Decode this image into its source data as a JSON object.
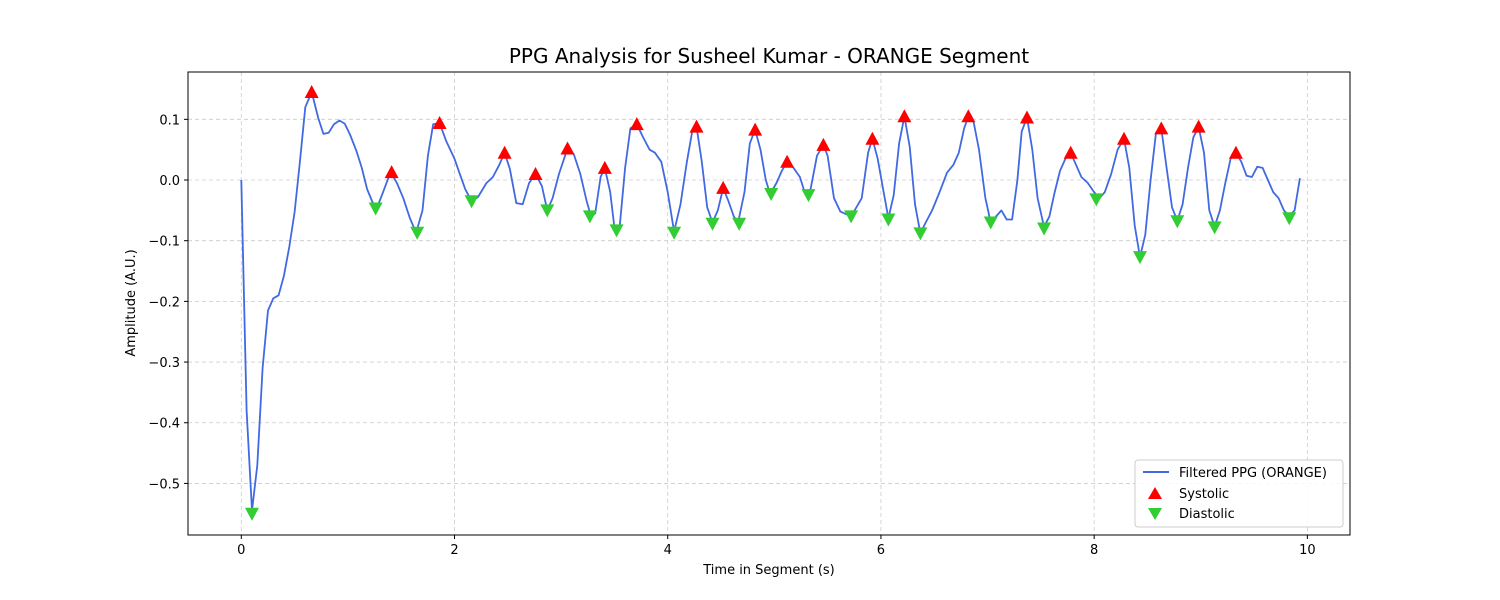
{
  "chart_data": {
    "type": "line",
    "title": "PPG Analysis for Susheel Kumar - ORANGE Segment",
    "xlabel": "Time in Segment (s)",
    "ylabel": "Amplitude (A.U.)",
    "xlim": [
      -0.5,
      10.4
    ],
    "ylim": [
      -0.585,
      0.178
    ],
    "xticks": [
      0,
      2,
      4,
      6,
      8,
      10
    ],
    "yticks": [
      0.1,
      0.0,
      -0.1,
      -0.2,
      -0.3,
      -0.4,
      -0.5
    ],
    "ytick_labels": [
      "0.1",
      "0.0",
      "−0.1",
      "−0.2",
      "−0.3",
      "−0.4",
      "−0.5"
    ],
    "grid": true,
    "legend_position": "lower-right",
    "colors": {
      "line": "#4169e1",
      "systolic": "#ff0000",
      "diastolic": "#32cd32"
    },
    "series": [
      {
        "name": "Filtered PPG (ORANGE)",
        "kind": "line",
        "points": [
          [
            0.0,
            0.0
          ],
          [
            0.05,
            -0.38
          ],
          [
            0.1,
            -0.545
          ],
          [
            0.15,
            -0.47
          ],
          [
            0.2,
            -0.31
          ],
          [
            0.25,
            -0.215
          ],
          [
            0.3,
            -0.195
          ],
          [
            0.35,
            -0.19
          ],
          [
            0.4,
            -0.158
          ],
          [
            0.45,
            -0.11
          ],
          [
            0.5,
            -0.053
          ],
          [
            0.55,
            0.03
          ],
          [
            0.6,
            0.12
          ],
          [
            0.66,
            0.145
          ],
          [
            0.72,
            0.103
          ],
          [
            0.77,
            0.076
          ],
          [
            0.82,
            0.078
          ],
          [
            0.87,
            0.092
          ],
          [
            0.92,
            0.098
          ],
          [
            0.97,
            0.093
          ],
          [
            1.02,
            0.075
          ],
          [
            1.08,
            0.048
          ],
          [
            1.13,
            0.02
          ],
          [
            1.18,
            -0.015
          ],
          [
            1.23,
            -0.036
          ],
          [
            1.27,
            -0.047
          ],
          [
            1.33,
            -0.02
          ],
          [
            1.4,
            0.013
          ],
          [
            1.46,
            -0.005
          ],
          [
            1.52,
            -0.03
          ],
          [
            1.58,
            -0.062
          ],
          [
            1.64,
            -0.087
          ],
          [
            1.7,
            -0.05
          ],
          [
            1.75,
            0.04
          ],
          [
            1.8,
            0.092
          ],
          [
            1.86,
            0.094
          ],
          [
            1.92,
            0.065
          ],
          [
            2.0,
            0.035
          ],
          [
            2.05,
            0.01
          ],
          [
            2.1,
            -0.015
          ],
          [
            2.16,
            -0.035
          ],
          [
            2.22,
            -0.028
          ],
          [
            2.3,
            -0.005
          ],
          [
            2.36,
            0.005
          ],
          [
            2.42,
            0.025
          ],
          [
            2.47,
            0.045
          ],
          [
            2.52,
            0.018
          ],
          [
            2.58,
            -0.038
          ],
          [
            2.64,
            -0.04
          ],
          [
            2.7,
            -0.005
          ],
          [
            2.76,
            0.01
          ],
          [
            2.82,
            -0.01
          ],
          [
            2.87,
            -0.05
          ],
          [
            2.92,
            -0.03
          ],
          [
            2.98,
            0.01
          ],
          [
            3.06,
            0.052
          ],
          [
            3.12,
            0.042
          ],
          [
            3.18,
            0.01
          ],
          [
            3.24,
            -0.035
          ],
          [
            3.28,
            -0.06
          ],
          [
            3.32,
            -0.055
          ],
          [
            3.37,
            0.005
          ],
          [
            3.41,
            0.02
          ],
          [
            3.46,
            -0.02
          ],
          [
            3.5,
            -0.078
          ],
          [
            3.55,
            -0.075
          ],
          [
            3.6,
            0.02
          ],
          [
            3.65,
            0.085
          ],
          [
            3.71,
            0.092
          ],
          [
            3.77,
            0.07
          ],
          [
            3.83,
            0.05
          ],
          [
            3.88,
            0.045
          ],
          [
            3.94,
            0.03
          ],
          [
            4.0,
            -0.02
          ],
          [
            4.06,
            -0.085
          ],
          [
            4.12,
            -0.04
          ],
          [
            4.18,
            0.03
          ],
          [
            4.23,
            0.08
          ],
          [
            4.27,
            0.088
          ],
          [
            4.32,
            0.03
          ],
          [
            4.37,
            -0.045
          ],
          [
            4.42,
            -0.07
          ],
          [
            4.47,
            -0.05
          ],
          [
            4.52,
            -0.013
          ],
          [
            4.57,
            -0.035
          ],
          [
            4.62,
            -0.06
          ],
          [
            4.66,
            -0.07
          ],
          [
            4.72,
            -0.02
          ],
          [
            4.77,
            0.06
          ],
          [
            4.82,
            0.083
          ],
          [
            4.87,
            0.05
          ],
          [
            4.92,
            0.0
          ],
          [
            4.96,
            -0.023
          ],
          [
            5.02,
            -0.005
          ],
          [
            5.07,
            0.015
          ],
          [
            5.12,
            0.03
          ],
          [
            5.18,
            0.02
          ],
          [
            5.24,
            0.005
          ],
          [
            5.29,
            -0.023
          ],
          [
            5.34,
            -0.015
          ],
          [
            5.4,
            0.04
          ],
          [
            5.46,
            0.058
          ],
          [
            5.5,
            0.04
          ],
          [
            5.56,
            -0.03
          ],
          [
            5.62,
            -0.052
          ],
          [
            5.72,
            -0.06
          ],
          [
            5.82,
            -0.03
          ],
          [
            5.88,
            0.045
          ],
          [
            5.92,
            0.068
          ],
          [
            5.97,
            0.035
          ],
          [
            6.02,
            -0.015
          ],
          [
            6.07,
            -0.063
          ],
          [
            6.12,
            -0.025
          ],
          [
            6.17,
            0.06
          ],
          [
            6.22,
            0.105
          ],
          [
            6.27,
            0.055
          ],
          [
            6.32,
            -0.04
          ],
          [
            6.37,
            -0.088
          ],
          [
            6.42,
            -0.07
          ],
          [
            6.48,
            -0.05
          ],
          [
            6.55,
            -0.02
          ],
          [
            6.62,
            0.012
          ],
          [
            6.68,
            0.025
          ],
          [
            6.73,
            0.045
          ],
          [
            6.78,
            0.085
          ],
          [
            6.82,
            0.105
          ],
          [
            6.87,
            0.095
          ],
          [
            6.92,
            0.05
          ],
          [
            6.98,
            -0.03
          ],
          [
            7.03,
            -0.07
          ],
          [
            7.08,
            -0.06
          ],
          [
            7.13,
            -0.05
          ],
          [
            7.18,
            -0.065
          ],
          [
            7.23,
            -0.065
          ],
          [
            7.28,
            0.0
          ],
          [
            7.32,
            0.08
          ],
          [
            7.37,
            0.103
          ],
          [
            7.42,
            0.05
          ],
          [
            7.47,
            -0.03
          ],
          [
            7.53,
            -0.077
          ],
          [
            7.58,
            -0.06
          ],
          [
            7.63,
            -0.02
          ],
          [
            7.68,
            0.015
          ],
          [
            7.73,
            0.035
          ],
          [
            7.78,
            0.045
          ],
          [
            7.83,
            0.025
          ],
          [
            7.88,
            0.005
          ],
          [
            7.94,
            -0.005
          ],
          [
            8.0,
            -0.02
          ],
          [
            8.05,
            -0.03
          ],
          [
            8.1,
            -0.02
          ],
          [
            8.16,
            0.01
          ],
          [
            8.22,
            0.05
          ],
          [
            8.28,
            0.068
          ],
          [
            8.33,
            0.02
          ],
          [
            8.38,
            -0.075
          ],
          [
            8.43,
            -0.127
          ],
          [
            8.48,
            -0.09
          ],
          [
            8.53,
            0.0
          ],
          [
            8.58,
            0.078
          ],
          [
            8.63,
            0.085
          ],
          [
            8.68,
            0.02
          ],
          [
            8.73,
            -0.045
          ],
          [
            8.78,
            -0.067
          ],
          [
            8.83,
            -0.04
          ],
          [
            8.88,
            0.02
          ],
          [
            8.93,
            0.07
          ],
          [
            8.98,
            0.088
          ],
          [
            9.03,
            0.045
          ],
          [
            9.08,
            -0.05
          ],
          [
            9.13,
            -0.077
          ],
          [
            9.18,
            -0.05
          ],
          [
            9.23,
            -0.005
          ],
          [
            9.28,
            0.035
          ],
          [
            9.33,
            0.045
          ],
          [
            9.38,
            0.03
          ],
          [
            9.43,
            0.007
          ],
          [
            9.48,
            0.005
          ],
          [
            9.53,
            0.022
          ],
          [
            9.58,
            0.02
          ],
          [
            9.63,
            0.0
          ],
          [
            9.68,
            -0.02
          ],
          [
            9.73,
            -0.03
          ],
          [
            9.78,
            -0.05
          ],
          [
            9.83,
            -0.06
          ],
          [
            9.88,
            -0.05
          ],
          [
            9.93,
            0.003
          ]
        ]
      },
      {
        "name": "Systolic",
        "kind": "marker-up",
        "points": [
          [
            0.66,
            0.145
          ],
          [
            1.41,
            0.013
          ],
          [
            1.86,
            0.094
          ],
          [
            2.47,
            0.045
          ],
          [
            2.76,
            0.01
          ],
          [
            3.06,
            0.052
          ],
          [
            3.41,
            0.02
          ],
          [
            3.71,
            0.092
          ],
          [
            4.27,
            0.088
          ],
          [
            4.52,
            -0.013
          ],
          [
            4.82,
            0.083
          ],
          [
            5.12,
            0.03
          ],
          [
            5.46,
            0.058
          ],
          [
            5.92,
            0.068
          ],
          [
            6.22,
            0.105
          ],
          [
            6.82,
            0.105
          ],
          [
            7.37,
            0.103
          ],
          [
            7.78,
            0.045
          ],
          [
            8.28,
            0.068
          ],
          [
            8.63,
            0.085
          ],
          [
            8.98,
            0.088
          ],
          [
            9.33,
            0.045
          ]
        ]
      },
      {
        "name": "Diastolic",
        "kind": "marker-down",
        "points": [
          [
            0.1,
            -0.55
          ],
          [
            1.26,
            -0.047
          ],
          [
            1.65,
            -0.087
          ],
          [
            2.16,
            -0.035
          ],
          [
            2.87,
            -0.05
          ],
          [
            3.27,
            -0.06
          ],
          [
            3.52,
            -0.083
          ],
          [
            4.06,
            -0.087
          ],
          [
            4.42,
            -0.072
          ],
          [
            4.67,
            -0.072
          ],
          [
            4.97,
            -0.023
          ],
          [
            5.32,
            -0.025
          ],
          [
            5.72,
            -0.06
          ],
          [
            6.07,
            -0.065
          ],
          [
            6.37,
            -0.088
          ],
          [
            7.03,
            -0.07
          ],
          [
            7.53,
            -0.08
          ],
          [
            8.02,
            -0.032
          ],
          [
            8.43,
            -0.127
          ],
          [
            8.78,
            -0.068
          ],
          [
            9.13,
            -0.078
          ],
          [
            9.83,
            -0.063
          ]
        ]
      }
    ]
  }
}
